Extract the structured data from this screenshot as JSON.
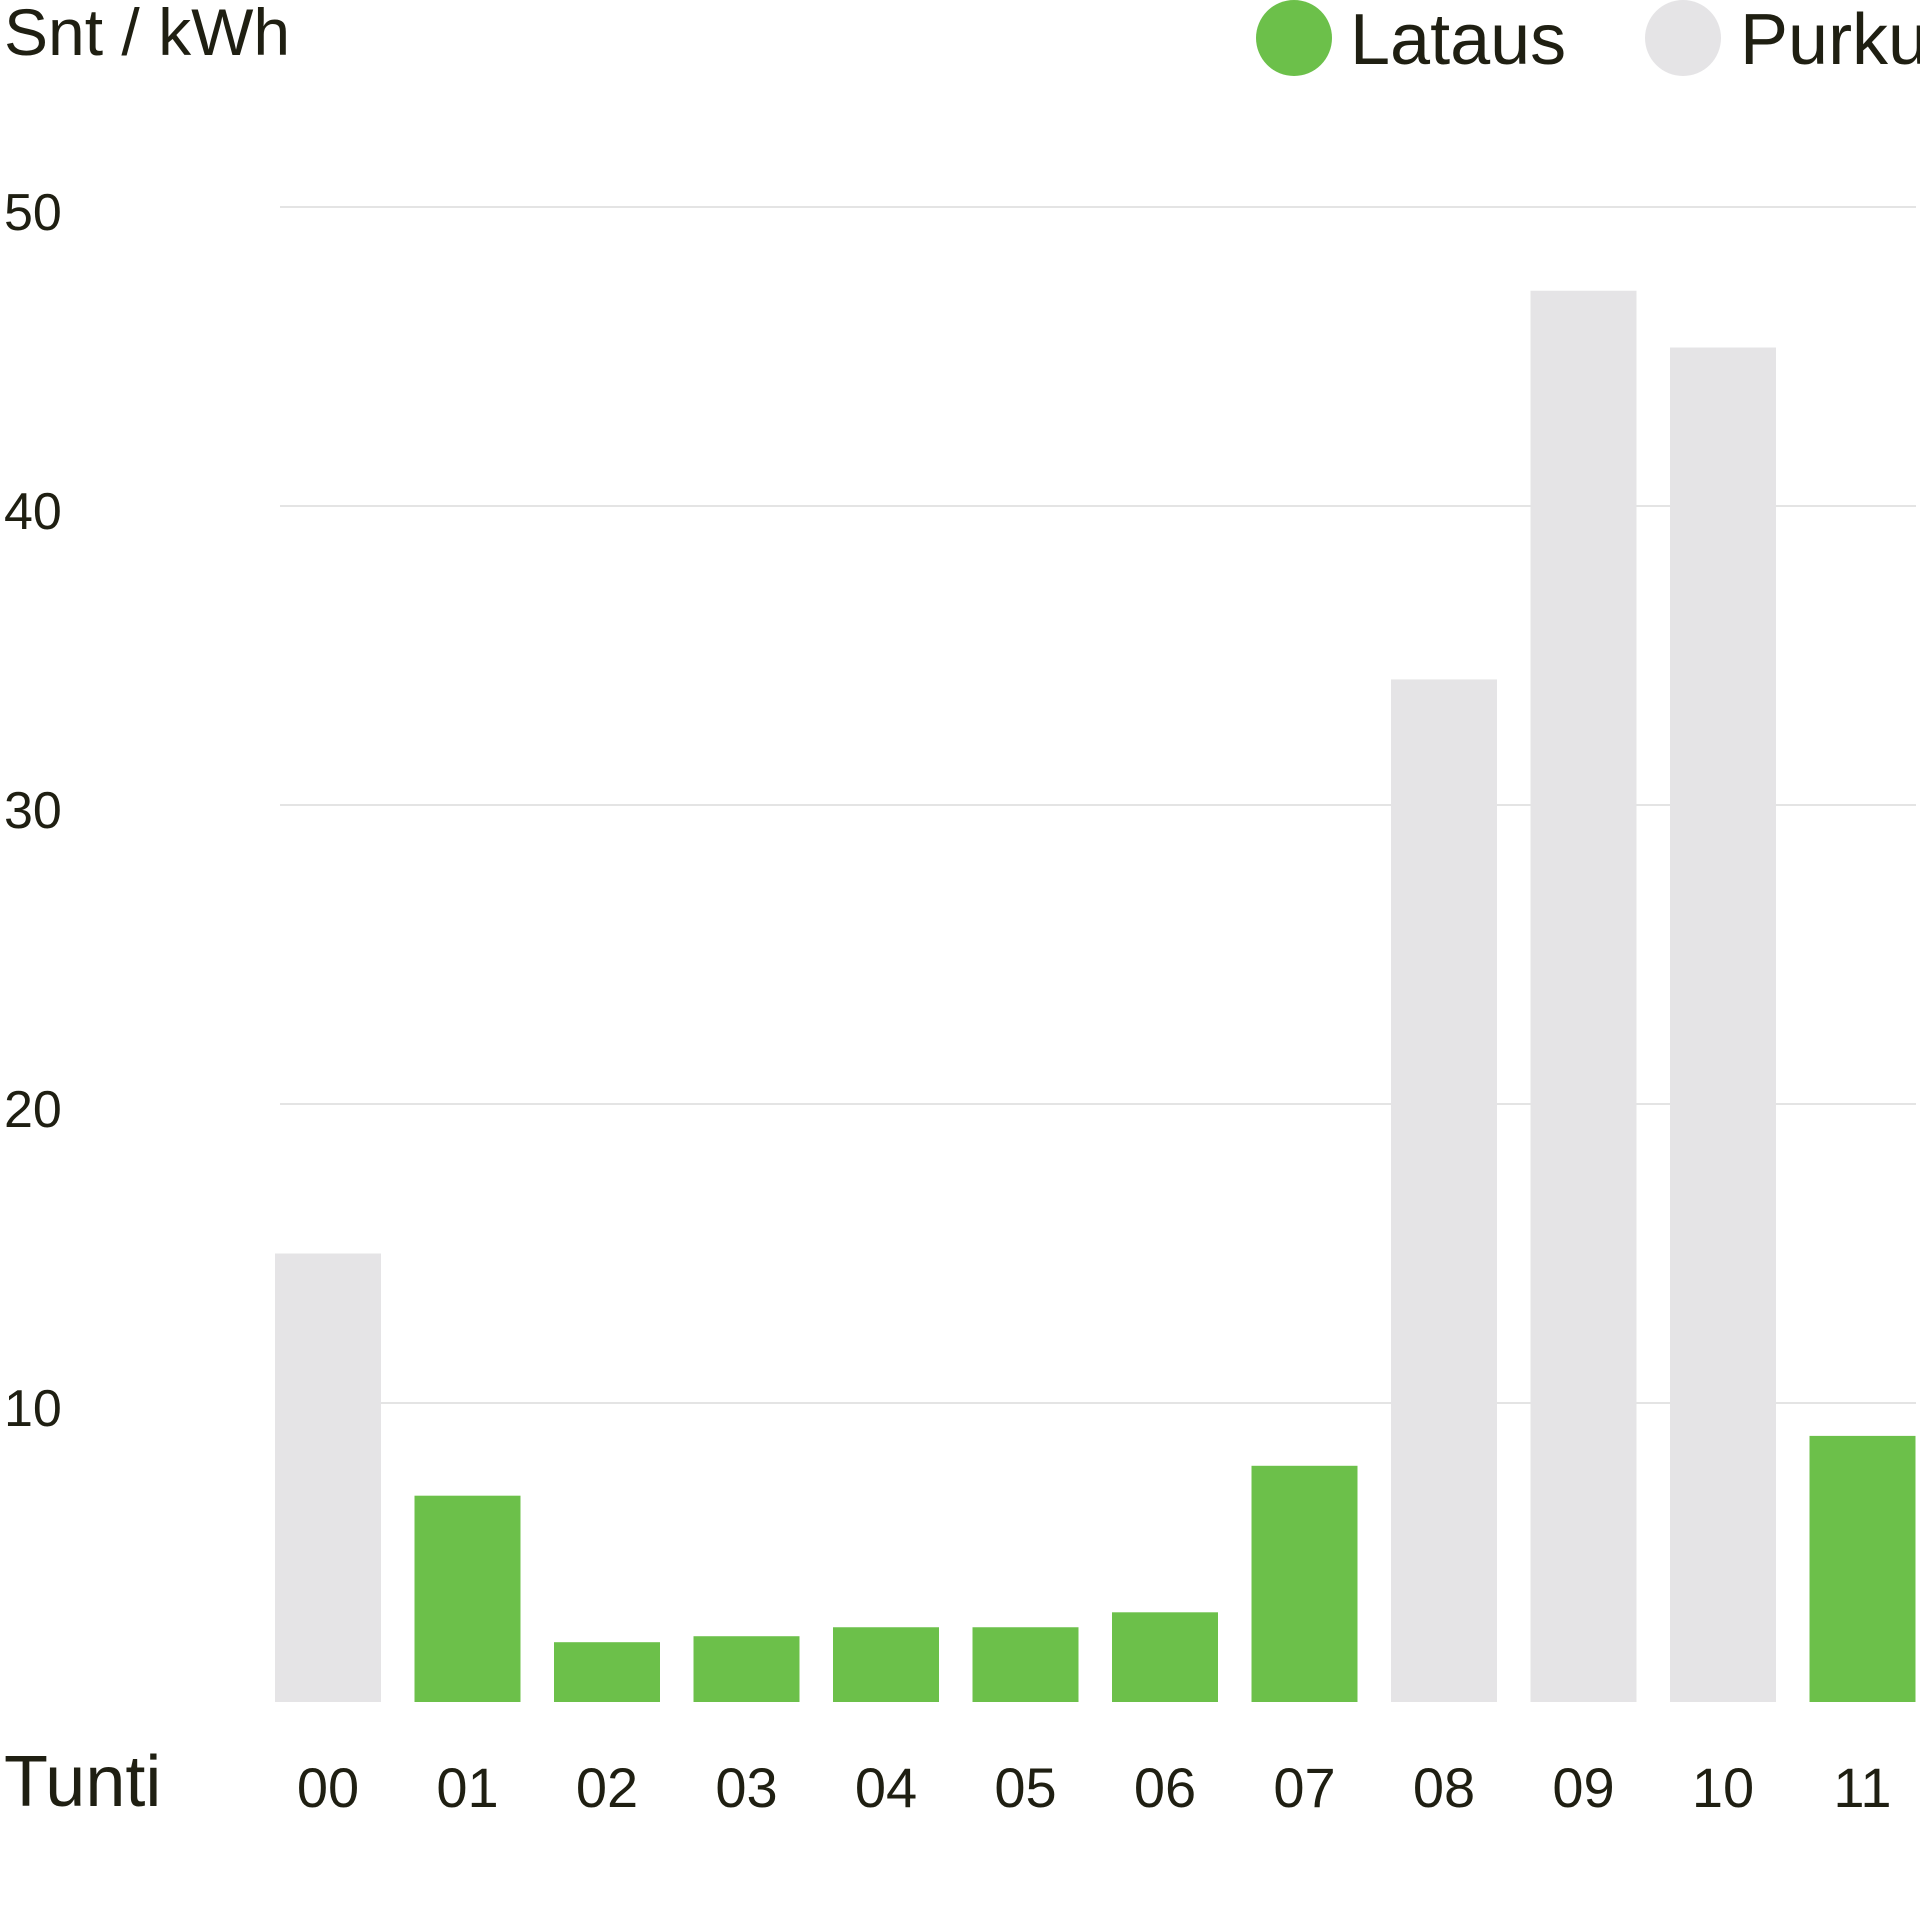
{
  "chart_data": {
    "type": "bar",
    "unit_label": "Snt / kWh",
    "xlabel": "Tunti",
    "ylabel": "Snt / kWh",
    "title": "",
    "categories": [
      "00",
      "01",
      "02",
      "03",
      "04",
      "05",
      "06",
      "07",
      "08",
      "09",
      "10",
      "11"
    ],
    "values": [
      15.0,
      6.9,
      2.0,
      2.2,
      2.5,
      2.5,
      3.0,
      7.9,
      34.2,
      47.2,
      45.3,
      8.9
    ],
    "modes": [
      "Purku",
      "Lataus",
      "Lataus",
      "Lataus",
      "Lataus",
      "Lataus",
      "Lataus",
      "Lataus",
      "Purku",
      "Purku",
      "Purku",
      "Lataus"
    ],
    "yticks": [
      "10",
      "20",
      "30",
      "40",
      "50"
    ],
    "ylim": [
      0,
      50
    ],
    "grid": true,
    "legend_position": "top-right",
    "legend": [
      {
        "name": "Lataus",
        "color": "#6cc04a"
      },
      {
        "name": "Purku",
        "color": "#e5e4e6"
      }
    ]
  }
}
